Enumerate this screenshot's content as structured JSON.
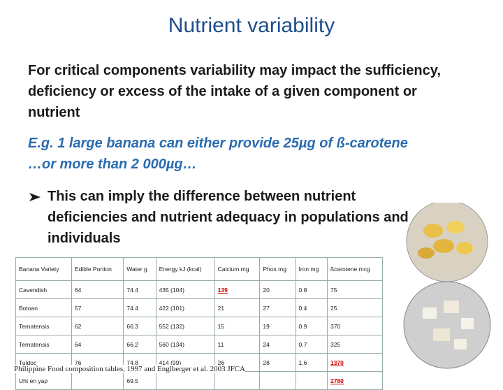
{
  "header": {
    "title": "Nutrient variability"
  },
  "body": {
    "paragraphs": [
      "For critical components variability may impact the sufficiency, deficiency or excess of the intake of a given component or nutrient",
      "E.g. 1 large banana can either provide 25µg of ß-carotene   …or more than 2 000µg…",
      "This can imply the difference between nutrient deficiencies and nutrient adequacy in populations and individuals"
    ]
  },
  "table": {
    "columns": [
      "Banana Variety",
      "Edible Portion",
      "Water g",
      "Energy kJ (kcal)",
      "Calcium mg",
      "Phos mg",
      "Iron mg",
      "ßcarotene mcg"
    ],
    "rows": [
      [
        "Cavendish",
        "64",
        "74.4",
        "435 (104)",
        "139",
        "20",
        "0.8",
        "75"
      ],
      [
        "Botoan",
        "57",
        "74.4",
        "422 (101)",
        "21",
        "27",
        "0.4",
        "25"
      ],
      [
        "Ternatensis",
        "62",
        "66.3",
        "552 (132)",
        "15",
        "19",
        "0.9",
        "370"
      ],
      [
        "Ternatensis",
        "64",
        "66.2",
        "560 (134)",
        "11",
        "24",
        "0.7",
        "325"
      ],
      [
        "Tuldoc",
        "76",
        "74.8",
        "414 (99)",
        "26",
        "28",
        "1.6",
        "1370"
      ],
      [
        "Uht en yap",
        null,
        "69.5",
        null,
        null,
        null,
        null,
        "2780"
      ]
    ]
  },
  "footer": {
    "source": "Philippine Food composition tables, 1997 and Englberger et al. 2003 JFCA"
  }
}
